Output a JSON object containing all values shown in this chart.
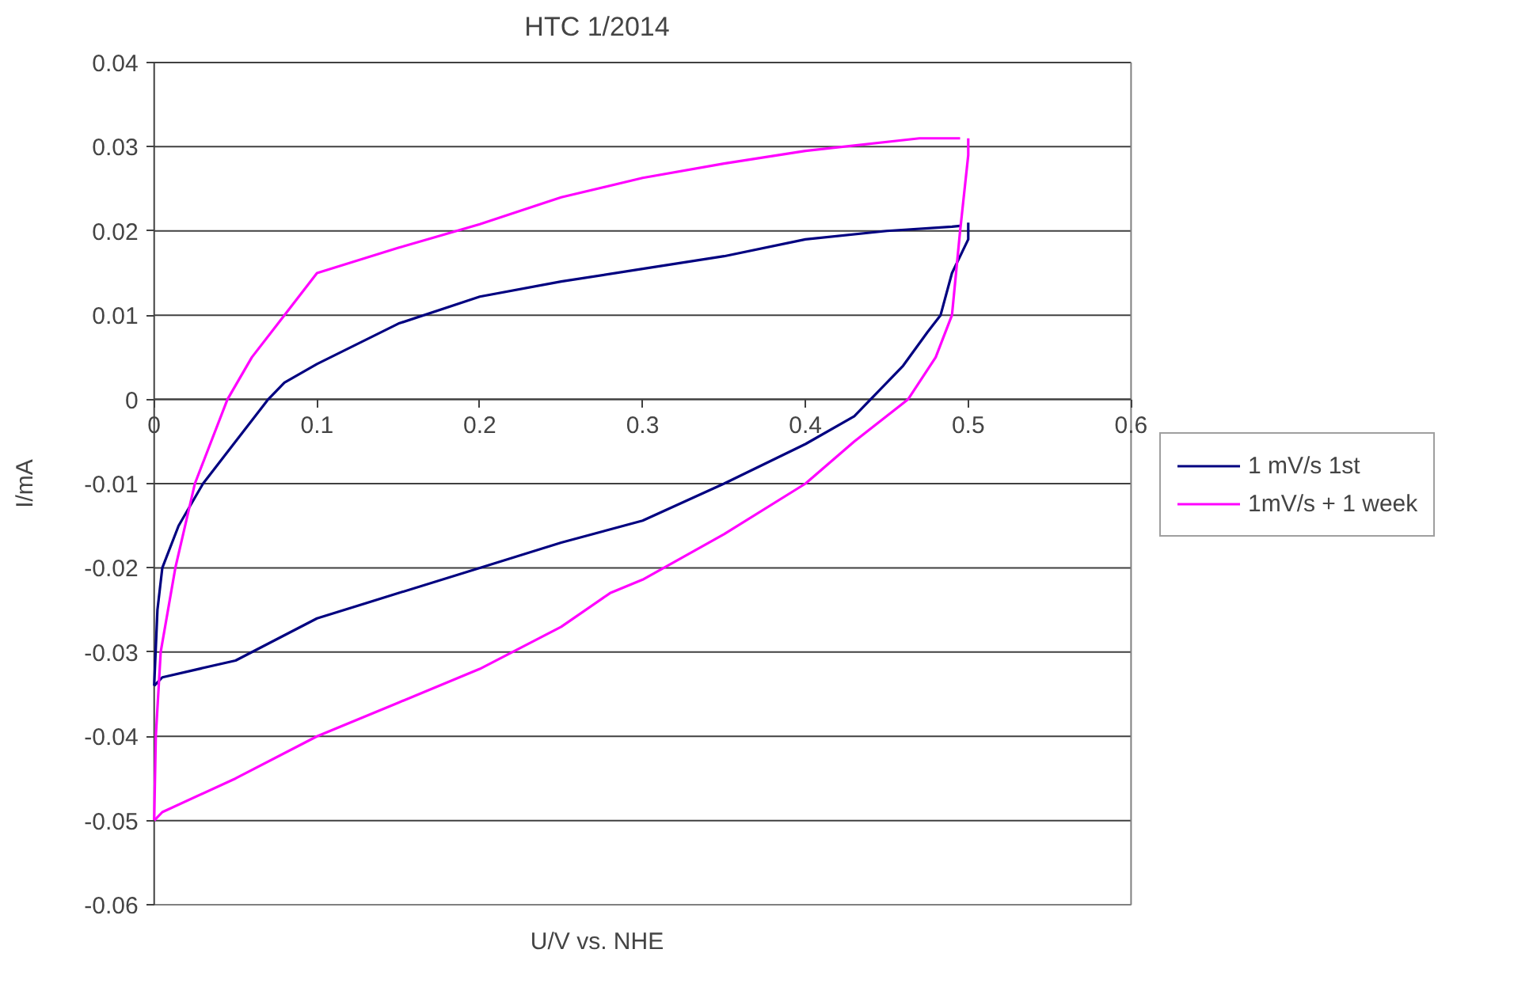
{
  "chart_data": {
    "type": "line",
    "title": "HTC 1/2014",
    "xlabel": "U/V vs. NHE",
    "ylabel": "I/mA",
    "xlim": [
      0,
      0.6
    ],
    "ylim": [
      -0.06,
      0.04
    ],
    "xticks": [
      0,
      0.1,
      0.2,
      0.3,
      0.4,
      0.5,
      0.6
    ],
    "yticks": [
      -0.06,
      -0.05,
      -0.04,
      -0.03,
      -0.02,
      -0.01,
      0,
      0.01,
      0.02,
      0.03,
      0.04
    ],
    "grid": "y",
    "legend": "right",
    "marker": "none",
    "line_style": "solid",
    "series": [
      {
        "name": "1 mV/s 1st",
        "color": "#000080",
        "x": [
          0,
          0.005,
          0.05,
          0.1,
          0.15,
          0.2,
          0.25,
          0.3,
          0.35,
          0.4,
          0.43,
          0.44,
          0.46,
          0.475,
          0.483,
          0.49,
          0.5,
          0.5
        ],
        "values": [
          -0.034,
          -0.033,
          -0.031,
          -0.026,
          -0.023,
          -0.02,
          -0.017,
          -0.0144,
          -0.01,
          -0.0053,
          -0.002,
          0,
          0.004,
          0.008,
          0.01,
          0.015,
          0.019,
          0.021
        ]
      },
      {
        "color": "#000080",
        "x": [
          0,
          0.002,
          0.005,
          0.015,
          0.03,
          0.05,
          0.07,
          0.08,
          0.1,
          0.15,
          0.2,
          0.25,
          0.3,
          0.35,
          0.4,
          0.45,
          0.49,
          0.495
        ],
        "values": [
          -0.034,
          -0.025,
          -0.02,
          -0.015,
          -0.01,
          -0.005,
          0,
          0.002,
          0.0042,
          0.009,
          0.0122,
          0.014,
          0.0155,
          0.017,
          0.019,
          0.02,
          0.0205,
          0.0206
        ]
      },
      {
        "name": "1mV/s + 1 week",
        "color": "#ff00ff",
        "x": [
          0,
          0.005,
          0.05,
          0.1,
          0.15,
          0.2,
          0.25,
          0.28,
          0.3,
          0.35,
          0.4,
          0.43,
          0.463,
          0.48,
          0.49,
          0.495,
          0.5,
          0.5
        ],
        "values": [
          -0.05,
          -0.049,
          -0.045,
          -0.04,
          -0.036,
          -0.032,
          -0.027,
          -0.023,
          -0.0214,
          -0.016,
          -0.01,
          -0.005,
          0,
          0.005,
          0.01,
          0.02,
          0.029,
          0.031
        ]
      },
      {
        "color": "#ff00ff",
        "x": [
          0,
          0.001,
          0.004,
          0.013,
          0.025,
          0.045,
          0.06,
          0.08,
          0.1,
          0.15,
          0.2,
          0.25,
          0.3,
          0.35,
          0.4,
          0.47,
          0.495
        ],
        "values": [
          -0.05,
          -0.04,
          -0.03,
          -0.02,
          -0.01,
          0,
          0.005,
          0.01,
          0.015,
          0.018,
          0.0208,
          0.024,
          0.0263,
          0.028,
          0.0295,
          0.031,
          0.031
        ]
      }
    ]
  }
}
